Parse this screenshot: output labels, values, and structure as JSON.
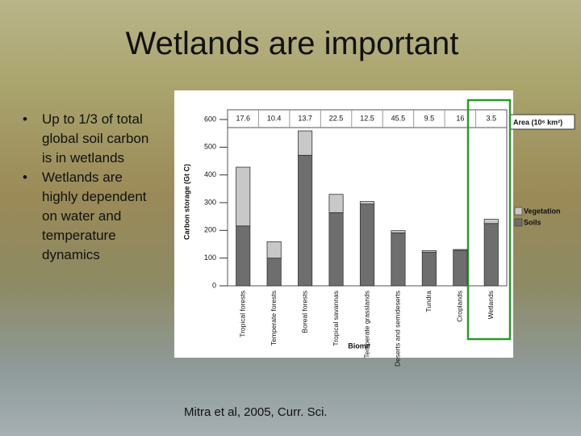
{
  "slide": {
    "title": "Wetlands are important",
    "bullets": [
      "Up to 1/3 of total global soil carbon is in wetlands",
      "Wetlands are highly dependent on water and temperature dynamics"
    ],
    "citation": "Mitra et al, 2005, Curr. Sci."
  },
  "chart_data": {
    "type": "stacked_bar",
    "y_label": "Carbon storage (Gt C)",
    "x_label": "Biome",
    "categories": [
      "Tropical forests",
      "Temperate forests",
      "Boreal forests",
      "Tropical savannas",
      "Temperate grasslands",
      "Deserts and semideserts",
      "Tundra",
      "Croplands",
      "Wetlands"
    ],
    "series": [
      {
        "name": "Soils",
        "color": "#6e6e6e",
        "values": [
          216,
          100,
          471,
          264,
          295,
          191,
          121,
          128,
          225
        ]
      },
      {
        "name": "Vegetation",
        "color": "#c8c8c8",
        "values": [
          212,
          59,
          88,
          66,
          9,
          8,
          6,
          3,
          15
        ]
      }
    ],
    "area_label": "Area (10⁶ km²)",
    "area_values": [
      17.6,
      10.4,
      13.7,
      22.5,
      12.5,
      45.5,
      9.5,
      16,
      3.5
    ],
    "ylim": [
      0,
      600
    ],
    "yticks": [
      0,
      100,
      200,
      300,
      400,
      500,
      600
    ]
  }
}
